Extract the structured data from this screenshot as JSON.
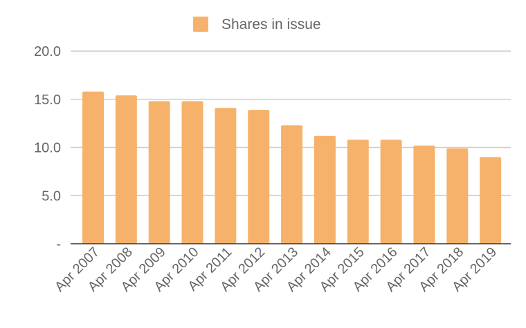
{
  "chart_data": {
    "type": "bar",
    "title": "",
    "xlabel": "",
    "ylabel": "",
    "categories": [
      "Apr 2007",
      "Apr 2008",
      "Apr 2009",
      "Apr 2010",
      "Apr 2011",
      "Apr 2012",
      "Apr 2013",
      "Apr 2014",
      "Apr 2015",
      "Apr 2016",
      "Apr 2017",
      "Apr 2018",
      "Apr 2019"
    ],
    "series": [
      {
        "name": "Shares in issue",
        "color": "#f6b26b",
        "values": [
          15.8,
          15.4,
          14.8,
          14.8,
          14.1,
          13.9,
          12.3,
          11.2,
          10.8,
          10.8,
          10.2,
          9.9,
          9.0
        ]
      }
    ],
    "ylim": [
      0,
      20
    ],
    "yticks": [
      0,
      5,
      10,
      15,
      20
    ],
    "ytick_labels": [
      "-",
      "5.0",
      "10.0",
      "15.0",
      "20.0"
    ],
    "grid": true,
    "legend": "top-center"
  }
}
